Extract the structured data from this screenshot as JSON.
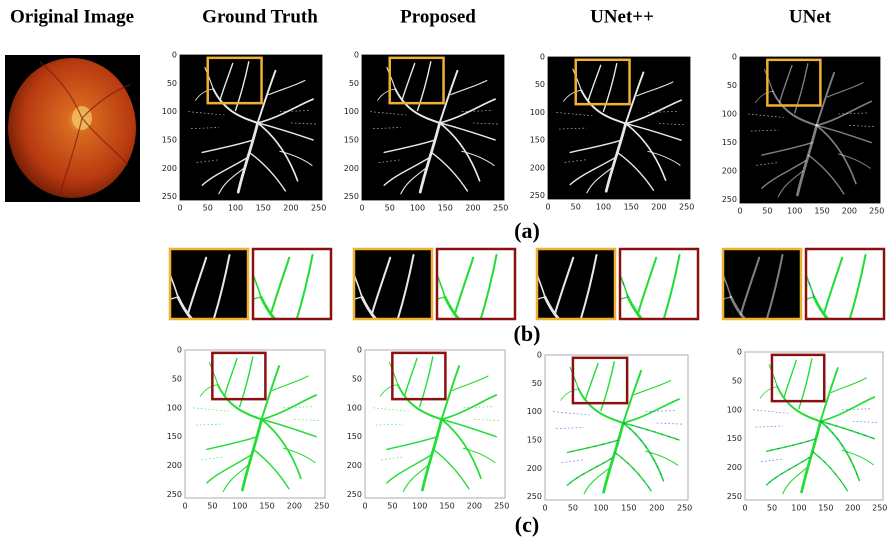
{
  "header": {
    "columns": [
      "Original Image",
      "Ground Truth",
      "Proposed",
      "UNet++",
      "UNet"
    ]
  },
  "axis_ticks": [
    0,
    50,
    100,
    150,
    200,
    250
  ],
  "panel_labels": [
    "(a)",
    "(b)",
    "(c)"
  ]
}
